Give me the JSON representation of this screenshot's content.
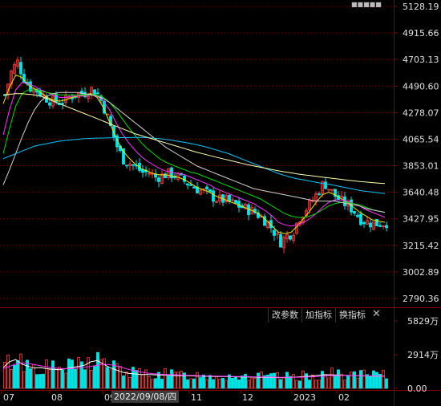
{
  "price_axis": [
    "5128.19",
    "4915.66",
    "4703.13",
    "4490.60",
    "4278.07",
    "4065.54",
    "3853.01",
    "3640.48",
    "3427.95",
    "3215.42",
    "3002.89",
    "2790.36"
  ],
  "volume_axis": [
    "5829万",
    "2914万",
    "0.00"
  ],
  "x_axis": [
    "07",
    "08",
    "09",
    "11",
    "12",
    "2023",
    "02"
  ],
  "crosshair_date": "2022/09/08/四",
  "toolbar": {
    "param_label": "改参数",
    "add_indicator_label": "加指标",
    "swap_indicator_label": "换指标",
    "close_label": "✕"
  },
  "colors": {
    "bg": "#000000",
    "up": "#ff3b3b",
    "down": "#00e5e5",
    "ma5": "#ffffff",
    "ma10": "#f2e600",
    "ma20": "#ff33ff",
    "ma30": "#00dd00",
    "ma60": "#cfcfcf",
    "ma120": "#00c8ff",
    "ma250": "#ffffaa",
    "grid": "#7a0000"
  },
  "chart_data": [
    {
      "type": "candlestick",
      "ylim": [
        2790.36,
        5128.19
      ],
      "ticks": [
        5128.19,
        4915.66,
        4703.13,
        4490.6,
        4278.07,
        4065.54,
        3853.01,
        3640.48,
        3427.95,
        3215.42,
        3002.89,
        2790.36
      ],
      "x_labels": [
        "07",
        "08",
        "09",
        "11",
        "12",
        "2023",
        "02"
      ],
      "series": [
        {
          "values": [
            4420,
            4600,
            4690,
            4560,
            4480,
            4460,
            4420,
            4380,
            4370,
            4360,
            4390,
            4420,
            4430,
            4440,
            4470,
            4420,
            4300,
            4150,
            4000,
            3900,
            3870,
            3840,
            3800,
            3800,
            3760,
            3770,
            3790,
            3780,
            3750,
            3720,
            3690,
            3660,
            3640,
            3610,
            3580,
            3580,
            3560,
            3540,
            3520,
            3500,
            3480,
            3440,
            3400,
            3330,
            3240,
            3290,
            3320,
            3430,
            3500,
            3560,
            3640,
            3720,
            3660,
            3600,
            3560,
            3530,
            3480,
            3420,
            3400,
            3390,
            3390,
            3400
          ]
        },
        {
          "values": [
            4350,
            4480,
            4580,
            4560,
            4500,
            4470,
            4440,
            4400,
            4380,
            4370,
            4380,
            4400,
            4410,
            4420,
            4430,
            4400,
            4320,
            4200,
            4080,
            3980,
            3920,
            3870,
            3830,
            3810,
            3790,
            3780,
            3780,
            3770,
            3760,
            3740,
            3710,
            3680,
            3660,
            3640,
            3610,
            3590,
            3570,
            3550,
            3530,
            3510,
            3490,
            3460,
            3420,
            3370,
            3320,
            3310,
            3320,
            3370,
            3430,
            3490,
            3560,
            3620,
            3640,
            3620,
            3590,
            3560,
            3520,
            3480,
            3450,
            3420,
            3410,
            3400
          ]
        },
        {
          "values": [
            4100,
            4300,
            4460,
            4520,
            4510,
            4490,
            4460,
            4440,
            4420,
            4400,
            4400,
            4410,
            4410,
            4410,
            4420,
            4410,
            4370,
            4300,
            4200,
            4110,
            4040,
            3980,
            3930,
            3890,
            3860,
            3830,
            3810,
            3800,
            3790,
            3780,
            3760,
            3740,
            3720,
            3700,
            3670,
            3650,
            3630,
            3610,
            3590,
            3570,
            3550,
            3520,
            3490,
            3450,
            3400,
            3380,
            3370,
            3380,
            3400,
            3430,
            3470,
            3520,
            3560,
            3580,
            3580,
            3570,
            3550,
            3530,
            3500,
            3480,
            3460,
            3440
          ]
        },
        {
          "values": [
            3950,
            4150,
            4330,
            4430,
            4460,
            4460,
            4450,
            4440,
            4430,
            4420,
            4420,
            4420,
            4420,
            4420,
            4420,
            4420,
            4400,
            4360,
            4300,
            4230,
            4160,
            4100,
            4040,
            3990,
            3950,
            3910,
            3880,
            3860,
            3840,
            3820,
            3800,
            3790,
            3770,
            3750,
            3730,
            3710,
            3690,
            3670,
            3650,
            3630,
            3610,
            3590,
            3560,
            3530,
            3500,
            3470,
            3450,
            3440,
            3440,
            3450,
            3470,
            3500,
            3530,
            3550,
            3560,
            3560,
            3550,
            3540,
            3520,
            3500,
            3490,
            3480
          ]
        },
        {
          "values": [
            3700,
            3820,
            3950,
            4080,
            4200,
            4300,
            4370,
            4410,
            4430,
            4440,
            4440,
            4440,
            4440,
            4430,
            4420,
            4410,
            4390,
            4360,
            4320,
            4280,
            4240,
            4200,
            4160,
            4120,
            4080,
            4040,
            4000,
            3970,
            3940,
            3910,
            3880,
            3850,
            3830,
            3810,
            3790,
            3770,
            3750,
            3730,
            3710,
            3690,
            3670,
            3660,
            3650,
            3640,
            3630,
            3620,
            3610,
            3600,
            3590,
            3580,
            3570,
            3570,
            3570,
            3570,
            3560,
            3550,
            3540,
            3530,
            3510,
            3500,
            3490,
            3480
          ]
        },
        {
          "values": [
            3910,
            3930,
            3950,
            3970,
            3990,
            4010,
            4020,
            4030,
            4040,
            4050,
            4055,
            4060,
            4065,
            4070,
            4072,
            4074,
            4075,
            4076,
            4077,
            4078,
            4079,
            4080,
            4080,
            4078,
            4074,
            4070,
            4064,
            4056,
            4048,
            4040,
            4030,
            4020,
            4008,
            3995,
            3980,
            3965,
            3950,
            3930,
            3910,
            3890,
            3870,
            3850,
            3830,
            3810,
            3790,
            3775,
            3760,
            3748,
            3740,
            3730,
            3720,
            3712,
            3705,
            3695,
            3685,
            3675,
            3665,
            3655,
            3648,
            3642,
            3636,
            3630
          ]
        },
        {
          "values": [
            4420,
            4425,
            4430,
            4430,
            4425,
            4420,
            4410,
            4390,
            4370,
            4350,
            4330,
            4310,
            4290,
            4270,
            4250,
            4230,
            4210,
            4190,
            4170,
            4150,
            4130,
            4110,
            4095,
            4080,
            4065,
            4050,
            4035,
            4020,
            4005,
            3990,
            3975,
            3960,
            3948,
            3935,
            3922,
            3910,
            3898,
            3886,
            3874,
            3862,
            3852,
            3842,
            3832,
            3822,
            3812,
            3804,
            3796,
            3788,
            3780,
            3774,
            3768,
            3762,
            3756,
            3750,
            3744,
            3738,
            3732,
            3727,
            3722,
            3718,
            3714,
            3710
          ]
        }
      ]
    },
    {
      "type": "bar",
      "ylim": [
        0,
        5829
      ],
      "ticks": [
        5829,
        2914,
        0
      ],
      "series": [
        {
          "values": [
            1800,
            2300,
            2500,
            2100,
            1900,
            1750,
            1800,
            1700,
            1650,
            1620,
            1700,
            1800,
            1900,
            2000,
            2300,
            2400,
            2100,
            1800,
            1600,
            1400,
            1300,
            1250,
            1200,
            1200,
            1180,
            1150,
            1150,
            1120,
            1100,
            1100,
            1080,
            1060,
            1050,
            1040,
            1030,
            1020,
            1010,
            1000,
            990,
            980,
            970,
            960,
            950,
            940,
            930,
            930,
            950,
            980,
            1020,
            1050,
            1100,
            1150,
            1180,
            1160,
            1140,
            1120,
            1100,
            1080,
            1070,
            1060,
            1060,
            1060
          ]
        },
        {
          "values": [
            1700,
            1900,
            2100,
            2200,
            2150,
            2050,
            1950,
            1850,
            1780,
            1720,
            1700,
            1720,
            1760,
            1820,
            1900,
            2000,
            2100,
            2050,
            1950,
            1800,
            1650,
            1500,
            1400,
            1320,
            1270,
            1230,
            1200,
            1180,
            1160,
            1140,
            1120,
            1100,
            1080,
            1070,
            1060,
            1050,
            1040,
            1030,
            1020,
            1010,
            1000,
            990,
            980,
            970,
            960,
            955,
            955,
            960,
            970,
            990,
            1020,
            1050,
            1080,
            1100,
            1110,
            1110,
            1100,
            1090,
            1080,
            1070,
            1065,
            1060
          ]
        }
      ]
    }
  ],
  "watermark": "■■■■■"
}
